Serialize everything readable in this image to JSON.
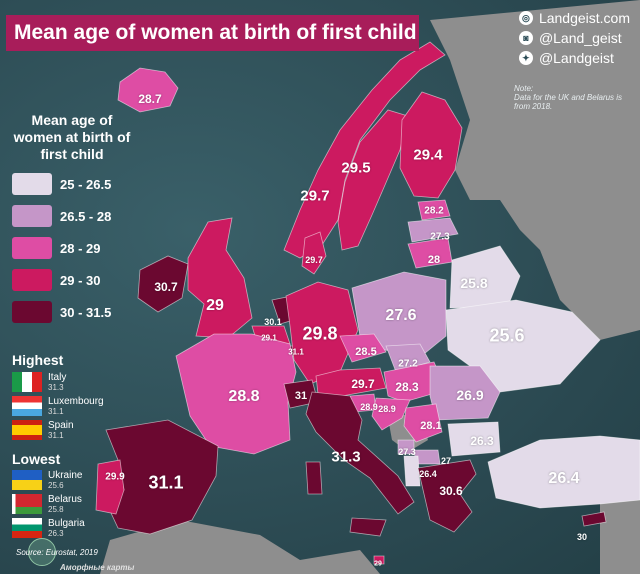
{
  "title": "Mean age of women at birth of first child",
  "brand": {
    "site": "Landgeist.com",
    "instagram": "@Land_geist",
    "twitter": "@Landgeist",
    "site_icon": "globe-icon",
    "instagram_icon": "instagram-icon",
    "twitter_icon": "twitter-icon"
  },
  "note": {
    "label": "Note:",
    "text": "Data for the UK and Belarus is from 2018."
  },
  "legend": {
    "title": "Mean age of women at birth of first child",
    "items": [
      {
        "label": "25  -  26.5",
        "color": "#e3dbe9"
      },
      {
        "label": "26.5  -  28",
        "color": "#c596c8"
      },
      {
        "label": "28  -  29",
        "color": "#de4da4"
      },
      {
        "label": "29  -  30",
        "color": "#cc1a60"
      },
      {
        "label": "30  -  31.5",
        "color": "#6b0830"
      }
    ]
  },
  "highest": {
    "heading": "Highest",
    "items": [
      {
        "country": "Italy",
        "value": "31.3",
        "flag": "italy"
      },
      {
        "country": "Luxembourg",
        "value": "31.1",
        "flag": "luxembourg"
      },
      {
        "country": "Spain",
        "value": "31.1",
        "flag": "spain"
      }
    ]
  },
  "lowest": {
    "heading": "Lowest",
    "items": [
      {
        "country": "Ukraine",
        "value": "25.6",
        "flag": "ukraine"
      },
      {
        "country": "Belarus",
        "value": "25.8",
        "flag": "belarus"
      },
      {
        "country": "Bulgaria",
        "value": "26.3",
        "flag": "bulgaria"
      }
    ]
  },
  "source": "Source: Eurostat, 2019",
  "footer": "Аморфные карты",
  "countries": [
    {
      "id": "iceland",
      "value": "28.7"
    },
    {
      "id": "norway",
      "value": "29.7"
    },
    {
      "id": "sweden",
      "value": "29.5"
    },
    {
      "id": "finland",
      "value": "29.4"
    },
    {
      "id": "estonia",
      "value": "28.2"
    },
    {
      "id": "latvia",
      "value": "27.3"
    },
    {
      "id": "lithuania",
      "value": "28"
    },
    {
      "id": "denmark",
      "value": "29.7"
    },
    {
      "id": "ireland",
      "value": "30.7"
    },
    {
      "id": "uk",
      "value": "29"
    },
    {
      "id": "netherlands",
      "value": "30.1"
    },
    {
      "id": "belgium",
      "value": "29.1"
    },
    {
      "id": "luxembourg",
      "value": "31.1"
    },
    {
      "id": "germany",
      "value": "29.8"
    },
    {
      "id": "poland",
      "value": "27.6"
    },
    {
      "id": "belarus",
      "value": "25.8"
    },
    {
      "id": "ukraine",
      "value": "25.6"
    },
    {
      "id": "france",
      "value": "28.8"
    },
    {
      "id": "czechia",
      "value": "28.5"
    },
    {
      "id": "slovakia",
      "value": "27.2"
    },
    {
      "id": "austria",
      "value": "29.7"
    },
    {
      "id": "hungary",
      "value": "28.3"
    },
    {
      "id": "switzerland",
      "value": "31"
    },
    {
      "id": "slovenia",
      "value": "28.9"
    },
    {
      "id": "croatia",
      "value": "28.9"
    },
    {
      "id": "romania",
      "value": "26.9"
    },
    {
      "id": "serbia",
      "value": "28.1"
    },
    {
      "id": "bulgaria",
      "value": "26.3"
    },
    {
      "id": "northmacedonia",
      "value": "27"
    },
    {
      "id": "montenegro",
      "value": "27.3"
    },
    {
      "id": "albania",
      "value": "26.4"
    },
    {
      "id": "italy",
      "value": "31.3"
    },
    {
      "id": "spain",
      "value": "31.1"
    },
    {
      "id": "portugal",
      "value": "29.9"
    },
    {
      "id": "greece",
      "value": "30.6"
    },
    {
      "id": "turkey",
      "value": "26.4"
    },
    {
      "id": "cyprus",
      "value": "30"
    },
    {
      "id": "malta",
      "value": "29"
    }
  ]
}
